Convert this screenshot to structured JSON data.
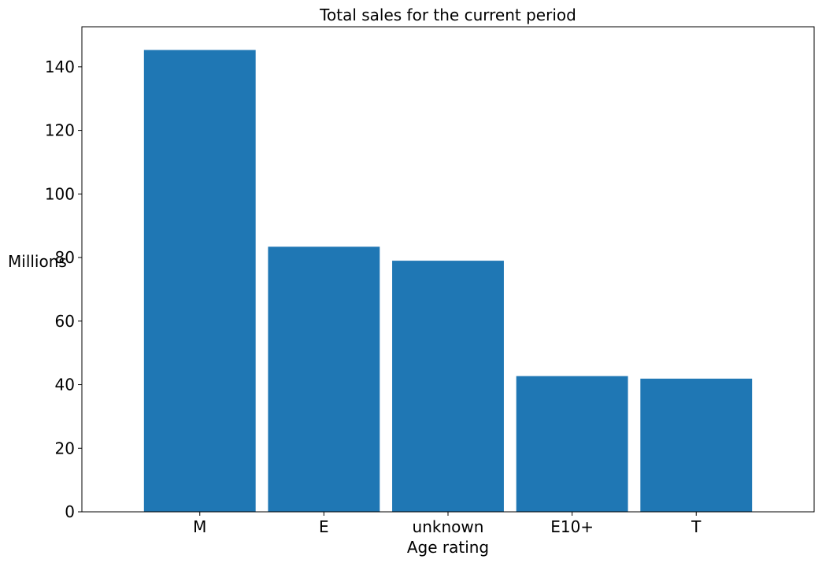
{
  "chart_data": {
    "type": "bar",
    "title": "Total sales for the current period",
    "xlabel": "Age rating",
    "ylabel": "Millions",
    "categories": [
      "M",
      "E",
      "unknown",
      "E10+",
      "T"
    ],
    "values": [
      145.3,
      83.4,
      79.0,
      42.7,
      41.9
    ],
    "ylim": [
      0,
      152.6
    ],
    "yticks": [
      0,
      20,
      40,
      60,
      80,
      100,
      120,
      140
    ],
    "grid": false,
    "bar_color": "#1f77b4"
  }
}
